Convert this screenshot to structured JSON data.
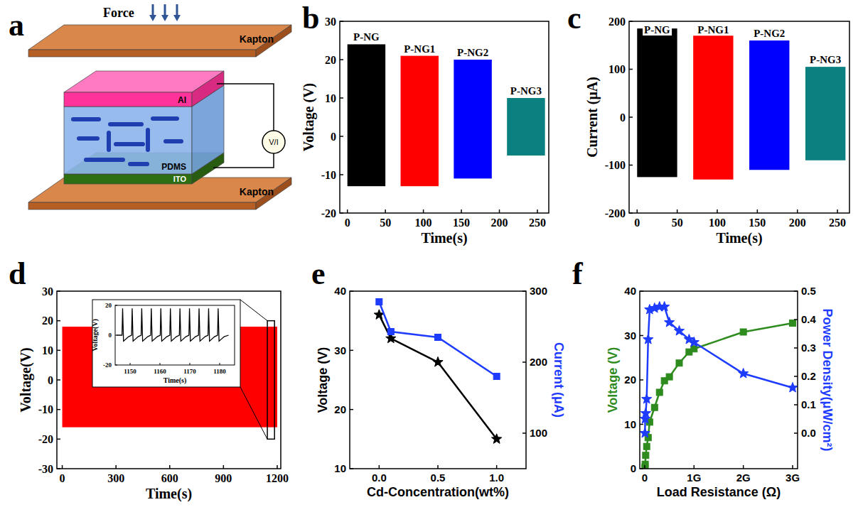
{
  "diagram": {
    "panel": "a",
    "force_label": "Force",
    "layers": [
      "Kapton",
      "Al",
      "PDMS",
      "ITO",
      "Kapton"
    ],
    "meter_label": "V/I"
  },
  "chart_data": [
    {
      "panel": "b",
      "type": "band",
      "xlabel": "Time(s)",
      "ylabel": "Voltage (V)",
      "xlim": [
        -10,
        265
      ],
      "xticks": [
        0,
        50,
        100,
        150,
        200,
        250
      ],
      "ylim": [
        -20,
        30
      ],
      "yticks": [
        -20,
        -10,
        0,
        10,
        20,
        30
      ],
      "series": [
        {
          "name": "P-NG",
          "color": "#000000",
          "x_range": [
            0,
            50
          ],
          "max": 24,
          "min": -13
        },
        {
          "name": "P-NG1",
          "color": "#ff0000",
          "x_range": [
            70,
            120
          ],
          "max": 21,
          "min": -13
        },
        {
          "name": "P-NG2",
          "color": "#0000ff",
          "x_range": [
            140,
            190
          ],
          "max": 20,
          "min": -11
        },
        {
          "name": "P-NG3",
          "color": "#0a8080",
          "x_range": [
            210,
            260
          ],
          "max": 10,
          "min": -5
        }
      ]
    },
    {
      "panel": "c",
      "type": "band",
      "xlabel": "Time(s)",
      "ylabel": "Current (μA)",
      "xlim": [
        -10,
        265
      ],
      "xticks": [
        0,
        50,
        100,
        150,
        200,
        250
      ],
      "ylim": [
        -200,
        200
      ],
      "yticks": [
        -200,
        -100,
        0,
        100,
        200
      ],
      "series": [
        {
          "name": "P-NG",
          "color": "#000000",
          "x_range": [
            0,
            50
          ],
          "max": 185,
          "min": -125
        },
        {
          "name": "P-NG1",
          "color": "#ff0000",
          "x_range": [
            70,
            120
          ],
          "max": 170,
          "min": -130
        },
        {
          "name": "P-NG2",
          "color": "#0000ff",
          "x_range": [
            140,
            190
          ],
          "max": 160,
          "min": -110
        },
        {
          "name": "P-NG3",
          "color": "#0a8080",
          "x_range": [
            210,
            260
          ],
          "max": 105,
          "min": -90
        }
      ]
    },
    {
      "panel": "d",
      "type": "band",
      "xlabel": "Time(s)",
      "ylabel": "Voltage(V)",
      "xlim": [
        -30,
        1220
      ],
      "xticks": [
        0,
        300,
        600,
        900,
        1200
      ],
      "ylim": [
        -30,
        30
      ],
      "yticks": [
        -30,
        -20,
        -10,
        0,
        10,
        20,
        30
      ],
      "series": [
        {
          "color": "#ff0000",
          "x_range": [
            0,
            1200
          ],
          "max": 18,
          "min": -16
        }
      ],
      "inset": {
        "type": "line",
        "xlabel": "Time(s)",
        "ylabel": "Voltage(V)",
        "xlim": [
          1145,
          1185
        ],
        "xticks": [
          1150,
          1160,
          1170,
          1180
        ],
        "ylim": [
          -20,
          20
        ],
        "yticks": [
          -20,
          0,
          20
        ],
        "color": "#000000",
        "x": [
          1145.5,
          1147.3,
          1147.5,
          1147.8,
          1149.5,
          1150.5,
          1150.7,
          1151.0,
          1152.7,
          1153.7,
          1153.9,
          1154.2,
          1155.9,
          1156.9,
          1157.1,
          1157.4,
          1159.1,
          1160.1,
          1160.3,
          1160.6,
          1162.3,
          1163.3,
          1163.5,
          1163.8,
          1165.5,
          1166.5,
          1166.7,
          1167.0,
          1168.7,
          1169.7,
          1169.9,
          1170.2,
          1171.9,
          1172.9,
          1173.1,
          1173.4,
          1175.1,
          1176.1,
          1176.3,
          1176.6,
          1178.3,
          1179.3,
          1179.5,
          1179.8,
          1181.5,
          1183
        ],
        "values": [
          0,
          0,
          18,
          -4,
          -1,
          0,
          18,
          -4,
          -1,
          0,
          18,
          -4,
          -1,
          0,
          18,
          -4,
          -1,
          0,
          18,
          -4,
          -1,
          0,
          18,
          -4,
          -1,
          0,
          18,
          -4,
          -1,
          0,
          18,
          -4,
          -1,
          0,
          18,
          -4,
          -1,
          0,
          18,
          -4,
          -1,
          0,
          18,
          -4,
          -1,
          0
        ]
      }
    },
    {
      "panel": "e",
      "type": "line",
      "xlabel": "Cd-Concentration(wt%)",
      "ylabel": "Voltage (V)",
      "y2label": "Current (μA)",
      "x": [
        0,
        0.1,
        0.5,
        1.0
      ],
      "xlim": [
        -0.25,
        1.25
      ],
      "xticks": [
        {
          "value": 0,
          "label": "0.0"
        },
        0.5,
        {
          "value": 1,
          "label": "1.0"
        }
      ],
      "ylim": [
        10,
        40
      ],
      "yticks": [
        10,
        20,
        30,
        40
      ],
      "y2lim": [
        50,
        300
      ],
      "y2ticks": [
        100,
        200,
        300
      ],
      "series": [
        {
          "color": "#000000",
          "marker": "star",
          "values": [
            36,
            32,
            28,
            15
          ]
        },
        {
          "color": "#1e3cff",
          "marker": "square",
          "axis": "y2",
          "values": [
            285,
            243,
            235,
            180
          ]
        }
      ]
    },
    {
      "panel": "f",
      "type": "line",
      "xlabel": "Load Resistance (Ω)",
      "ylabel": "Voltage (V)",
      "y2label": "Power Density(μW/cm²)",
      "x": [
        5000000,
        10000000,
        20000000,
        40000000,
        70000000,
        100000000,
        200000000,
        300000000,
        400000000,
        500000000,
        700000000,
        900000000,
        1000000000,
        2000000000,
        3000000000
      ],
      "xlim": [
        -100000000,
        3100000000
      ],
      "xticks": [
        0,
        {
          "value": 1000000000,
          "label": "1G"
        },
        {
          "value": 2000000000,
          "label": "2G"
        },
        {
          "value": 3000000000,
          "label": "3G"
        }
      ],
      "ylim": [
        0,
        40
      ],
      "yticks": [
        0,
        10,
        20,
        30,
        40
      ],
      "y2lim": [
        -0.125,
        0.5
      ],
      "y2ticks": [
        {
          "value": 0,
          "label": "0.0"
        },
        0.1,
        0.2,
        0.3,
        0.4,
        0.5
      ],
      "series": [
        {
          "color": "#2e8b1e",
          "marker": "square",
          "values": [
            0.3,
            1,
            3,
            5,
            7,
            10.5,
            13.8,
            17.2,
            19.8,
            20.7,
            23.8,
            26.3,
            27,
            30.8,
            32.8
          ]
        },
        {
          "color": "#1e3cff",
          "marker": "star",
          "axis": "y2",
          "values": [
            0.0,
            0.05,
            0.07,
            0.12,
            0.33,
            0.435,
            0.44,
            0.445,
            0.445,
            0.39,
            0.36,
            0.33,
            0.32,
            0.21,
            0.16
          ]
        }
      ]
    }
  ]
}
